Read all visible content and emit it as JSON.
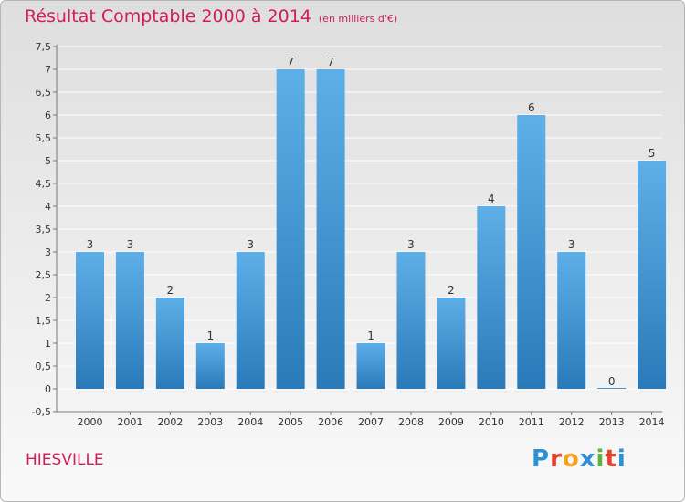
{
  "header": {
    "title": "Résultat Comptable 2000 à 2014",
    "subtitle": "(en milliers d'€)"
  },
  "footer": {
    "town": "HIESVILLE",
    "logo": "Proxiti"
  },
  "colors": {
    "title": "#d01e55",
    "bar_top": "#5eafe8",
    "bar_bottom": "#2a7ab9",
    "grid": "#ffffff"
  },
  "chart_data": {
    "type": "bar",
    "title": "Résultat Comptable 2000 à 2014",
    "ylabel": "en milliers d'€",
    "categories": [
      "2000",
      "2001",
      "2002",
      "2003",
      "2004",
      "2005",
      "2006",
      "2007",
      "2008",
      "2009",
      "2010",
      "2011",
      "2012",
      "2013",
      "2014"
    ],
    "values": [
      3,
      3,
      2,
      1,
      3,
      7,
      7,
      1,
      3,
      2,
      4,
      6,
      3,
      0,
      5
    ],
    "ylim": [
      -0.5,
      7.5
    ],
    "yticks": [
      "-0,5",
      "0",
      "0,5",
      "1",
      "1,5",
      "2",
      "2,5",
      "3",
      "3,5",
      "4",
      "4,5",
      "5",
      "5,5",
      "6",
      "6,5",
      "7",
      "7,5"
    ],
    "grid": true
  }
}
